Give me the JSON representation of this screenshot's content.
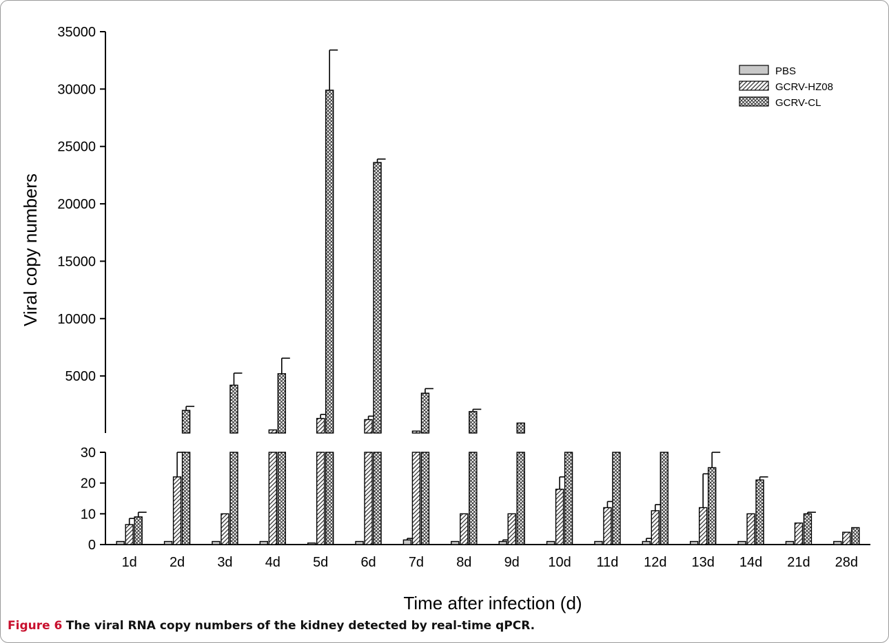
{
  "caption": {
    "label": "Figure 6",
    "text": "The viral RNA copy numbers of the kidney detected by real-time qPCR."
  },
  "colors": {
    "axis": "#000000",
    "bar_fill": "#ffffff",
    "pattern": "#333333",
    "pbs_fill": "#c8c8c8"
  },
  "chart_data": {
    "type": "bar",
    "title": "",
    "xlabel": "Time after infection (d)",
    "ylabel": "Viral copy numbers",
    "categories": [
      "1d",
      "2d",
      "3d",
      "4d",
      "5d",
      "6d",
      "7d",
      "8d",
      "9d",
      "10d",
      "11d",
      "12d",
      "13d",
      "14d",
      "21d",
      "28d"
    ],
    "broken_axis": true,
    "lower_axis": {
      "ylim": [
        0,
        30
      ],
      "ticks": [
        "0",
        "10",
        "20",
        "30"
      ],
      "tick_values": [
        0,
        10,
        20,
        30
      ]
    },
    "upper_axis": {
      "ylim": [
        30,
        35000
      ],
      "ticks": [
        "5000",
        "10000",
        "15000",
        "20000",
        "25000",
        "30000",
        "35000"
      ],
      "tick_values": [
        5000,
        10000,
        15000,
        20000,
        25000,
        30000,
        35000
      ]
    },
    "legend": {
      "position": "top-right"
    },
    "series": [
      {
        "name": "PBS",
        "pattern": "solid-gray",
        "values": [
          1,
          1,
          1,
          1,
          0.5,
          1,
          1.5,
          1,
          1,
          1,
          1,
          1,
          1,
          1,
          1,
          1
        ],
        "errors": [
          0,
          0,
          0,
          0,
          0,
          0,
          0.5,
          0,
          0.5,
          0,
          0,
          1,
          0,
          0,
          0,
          0
        ]
      },
      {
        "name": "GCRV-HZ08",
        "pattern": "diagonal",
        "values": [
          6.5,
          22,
          10,
          300,
          1300,
          1200,
          200,
          10,
          10,
          18,
          12,
          11,
          12,
          10,
          7,
          4
        ],
        "errors": [
          2,
          8,
          0,
          0,
          350,
          300,
          0,
          0,
          0,
          4,
          2,
          2,
          11,
          0,
          0,
          0
        ]
      },
      {
        "name": "GCRV-CL",
        "pattern": "crosshatch",
        "values": [
          9,
          2000,
          4200,
          5200,
          29900,
          23600,
          3500,
          1900,
          900,
          30,
          30,
          30,
          25,
          21,
          10,
          5.5
        ],
        "errors": [
          1.5,
          350,
          1050,
          1350,
          3500,
          300,
          400,
          200,
          0,
          0,
          0,
          0,
          5,
          1,
          0.5,
          0
        ]
      }
    ]
  }
}
